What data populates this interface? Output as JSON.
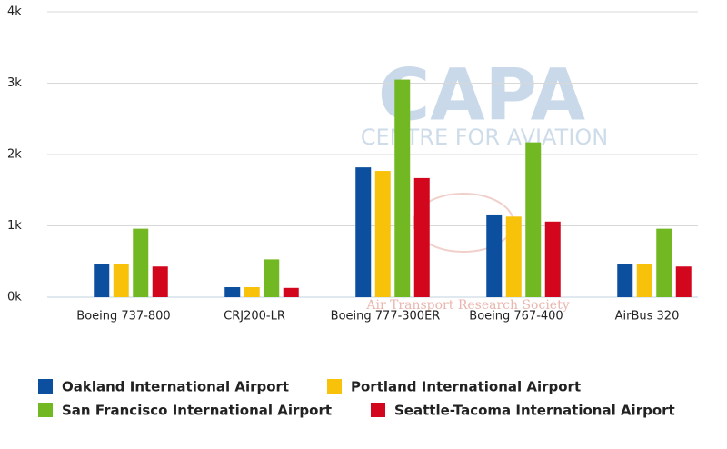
{
  "chart_data": {
    "type": "bar",
    "categories": [
      "Boeing 737-800",
      "CRJ200-LR",
      "Boeing 777-300ER",
      "Boeing 767-400",
      "AirBus 320"
    ],
    "series": [
      {
        "name": "Oakland International Airport",
        "color": "#0b4f9e",
        "values": [
          470,
          140,
          1820,
          1160,
          460
        ]
      },
      {
        "name": "Portland International Airport",
        "color": "#f8c10a",
        "values": [
          460,
          140,
          1770,
          1130,
          460
        ]
      },
      {
        "name": "San Francisco International Airport",
        "color": "#72b823",
        "values": [
          960,
          530,
          3050,
          2170,
          960
        ]
      },
      {
        "name": "Seattle-Tacoma International Airport",
        "color": "#d2061c",
        "values": [
          430,
          130,
          1670,
          1060,
          430
        ]
      }
    ],
    "ylim": [
      0,
      4000
    ],
    "yticks": [
      {
        "value": 0,
        "label": "0k"
      },
      {
        "value": 1000,
        "label": "1k"
      },
      {
        "value": 2000,
        "label": "2k"
      },
      {
        "value": 3000,
        "label": "3k"
      },
      {
        "value": 4000,
        "label": "4k"
      }
    ],
    "grid": true,
    "legend": "bottom",
    "annotations": [
      "CAPA",
      "CENTRE FOR AVIATION",
      "Air Transport Research Society"
    ]
  }
}
